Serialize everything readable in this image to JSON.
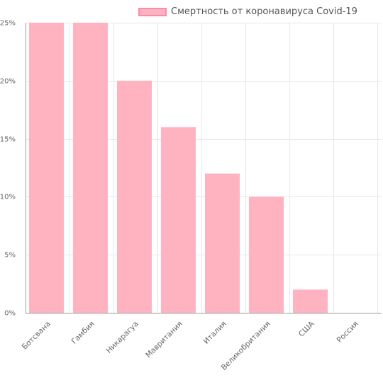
{
  "legend": {
    "label": "Смертность от коронавируса Covid-19",
    "swatch_color": "#ffb3c1",
    "swatch_border": "#ff8aa8"
  },
  "chart_data": {
    "type": "bar",
    "categories": [
      "Ботсвана",
      "Гамбия",
      "Никарагуа",
      "Мавритания",
      "Италия",
      "Великобритания",
      "США",
      "Россия"
    ],
    "series": [
      {
        "name": "Смертность от коронавируса Covid-19",
        "values": [
          25,
          25,
          20,
          16,
          12,
          10,
          2,
          0
        ]
      }
    ],
    "ylim": [
      0,
      25
    ],
    "yticks": [
      0,
      5,
      10,
      15,
      20,
      25
    ],
    "ytick_labels": [
      "0%",
      "5%",
      "10%",
      "15%",
      "20%",
      "25%"
    ],
    "grid": true,
    "legend_position": "top-right",
    "bar_color": "#ffb3c1"
  }
}
